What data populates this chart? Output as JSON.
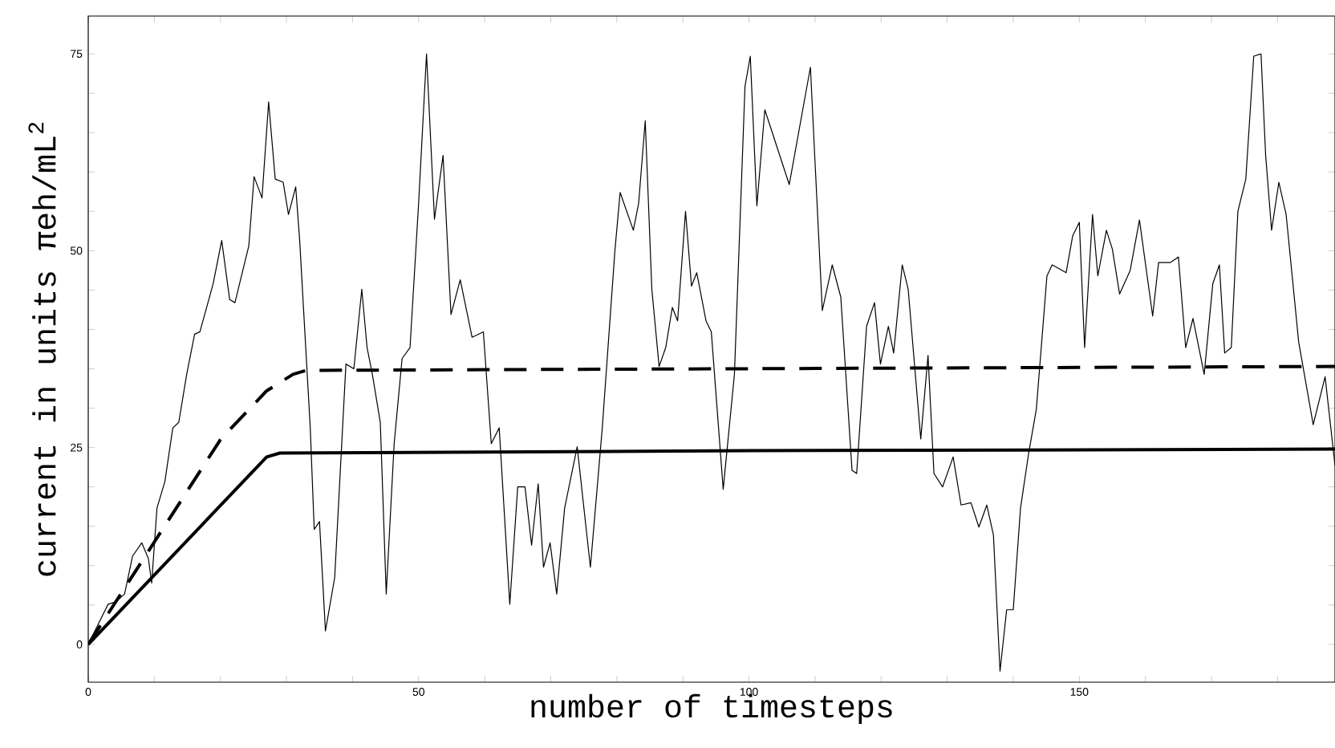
{
  "chart_data": {
    "type": "line",
    "xlabel": "number of timesteps",
    "ylabel": "current in units πeh/mL$^{2}$",
    "xlim": [
      0,
      188.7
    ],
    "ylim": [
      -4.8,
      79.8
    ],
    "xticks": [
      0,
      {
        "value": 10,
        "label": null
      },
      {
        "value": 20,
        "label": null
      },
      {
        "value": 30,
        "label": null
      },
      {
        "value": 40,
        "label": null
      },
      50,
      {
        "value": 60,
        "label": null
      },
      {
        "value": 70,
        "label": null
      },
      {
        "value": 80,
        "label": null
      },
      {
        "value": 90,
        "label": null
      },
      100,
      {
        "value": 110,
        "label": null
      },
      {
        "value": 120,
        "label": null
      },
      {
        "value": 130,
        "label": null
      },
      {
        "value": 140,
        "label": null
      },
      150,
      {
        "value": 160,
        "label": null
      },
      {
        "value": 170,
        "label": null
      },
      {
        "value": 180,
        "label": null
      }
    ],
    "yticks": [
      0,
      {
        "value": 5,
        "label": null
      },
      {
        "value": 10,
        "label": null
      },
      {
        "value": 15,
        "label": null
      },
      {
        "value": 20,
        "label": null
      },
      25,
      {
        "value": 30,
        "label": null
      },
      {
        "value": 35,
        "label": null
      },
      {
        "value": 40,
        "label": null
      },
      {
        "value": 45,
        "label": null
      },
      50,
      {
        "value": 55,
        "label": null
      },
      {
        "value": 60,
        "label": null
      },
      {
        "value": 65,
        "label": null
      },
      {
        "value": 70,
        "label": null
      },
      75
    ],
    "grid": false,
    "marker": "none",
    "series": [
      {
        "color": "#000000",
        "line_style": "solid",
        "x": [
          0,
          3,
          4.2,
          5.5,
          6.7,
          8.1,
          9.1,
          9.6,
          10.4,
          11.6,
          12.8,
          13.7,
          14.9,
          16.1,
          16.9,
          18.9,
          20.2,
          21.4,
          22.2,
          24.3,
          25.1,
          26.3,
          27.3,
          28.3,
          29.5,
          30.3,
          31.4,
          32,
          33.6,
          34.2,
          35,
          35.9,
          37.3,
          39,
          40.2,
          41.4,
          42.2,
          43,
          44.2,
          45.1,
          46.3,
          47.5,
          48.7,
          50,
          51.2,
          52.4,
          53.7,
          54.9,
          56.3,
          58.1,
          59.8,
          61,
          62.2,
          63.8,
          65,
          66.1,
          67.1,
          68.1,
          68.9,
          69.9,
          70.9,
          72.1,
          74,
          76,
          77.8,
          79.7,
          80.5,
          82.5,
          83.3,
          84.3,
          85.3,
          86.4,
          87.4,
          88.4,
          89.2,
          90.4,
          91.3,
          92.1,
          93.5,
          94.3,
          96.1,
          97.8,
          99.4,
          100.2,
          101.2,
          102.4,
          106.1,
          109.3,
          111.1,
          112.6,
          113.9,
          115.6,
          116.3,
          117.8,
          119,
          119.9,
          121.1,
          121.9,
          123.2,
          124.1,
          126,
          127.1,
          128,
          129.3,
          130.9,
          132.1,
          133.6,
          134.8,
          136,
          137,
          138,
          139,
          140,
          141.1,
          142.3,
          143.5,
          145.1,
          145.9,
          148,
          149,
          150,
          150.8,
          152,
          152.8,
          154.1,
          155,
          156.1,
          157.7,
          159.1,
          161.1,
          162,
          163.8,
          165,
          166.1,
          167.2,
          168.9,
          170.2,
          171.2,
          172,
          173,
          174,
          175.2,
          176.4,
          177.5,
          178.2,
          179.1,
          180.2,
          181.3,
          183.2,
          185.4,
          187.2,
          188.7
        ],
        "values": [
          0,
          5.1,
          5.4,
          6.4,
          11.2,
          12.9,
          10.9,
          7.8,
          17.3,
          20.7,
          27.5,
          28.2,
          34.3,
          39.4,
          39.7,
          45.8,
          51.3,
          43.8,
          43.4,
          50.6,
          59.4,
          56.7,
          68.9,
          59.1,
          58.7,
          54.6,
          58.1,
          51.3,
          27.5,
          14.6,
          15.6,
          1.7,
          8.5,
          35.6,
          35,
          45.1,
          37.7,
          34.3,
          28.2,
          6.4,
          25.5,
          36.3,
          37.7,
          56,
          75,
          54,
          62.1,
          41.9,
          46.3,
          39,
          39.7,
          25.5,
          27.5,
          5.1,
          20,
          20,
          12.6,
          20.4,
          9.8,
          12.9,
          6.4,
          17.3,
          25.1,
          9.8,
          27.5,
          49.9,
          57.4,
          52.6,
          56,
          66.5,
          45.1,
          35.3,
          37.7,
          42.8,
          41.1,
          55,
          45.5,
          47.2,
          41.1,
          39.7,
          19.7,
          34.3,
          70.9,
          74.7,
          55.7,
          67.9,
          58.4,
          73.3,
          42.4,
          48.2,
          44.1,
          22.1,
          21.7,
          40.4,
          43.4,
          35.6,
          40.4,
          37,
          48.2,
          45.1,
          26.1,
          36.7,
          21.7,
          20,
          23.8,
          17.7,
          18,
          14.9,
          17.7,
          13.9,
          -3.4,
          4.4,
          4.4,
          17.3,
          24.1,
          29.9,
          46.8,
          48.2,
          47.2,
          51.9,
          53.6,
          37.7,
          54.6,
          46.8,
          52.6,
          50.2,
          44.5,
          47.5,
          53.9,
          41.7,
          48.5,
          48.5,
          49.2,
          37.7,
          41.4,
          34.3,
          45.8,
          48.2,
          37,
          37.7,
          55,
          59.1,
          74.7,
          75,
          62.1,
          52.6,
          58.7,
          54.6,
          38.4,
          27.9,
          34,
          22.7
        ]
      },
      {
        "color": "#000000",
        "line_style": "solid",
        "x": [
          0,
          27,
          29,
          100,
          188.7
        ],
        "values": [
          0,
          23.8,
          24.3,
          24.6,
          24.8
        ]
      },
      {
        "color": "#000000",
        "line_style": "dashed",
        "x": [
          0,
          10,
          20,
          27,
          31,
          33,
          188.7
        ],
        "values": [
          0,
          13,
          26,
          32.2,
          34.3,
          34.8,
          35.3
        ]
      }
    ]
  }
}
